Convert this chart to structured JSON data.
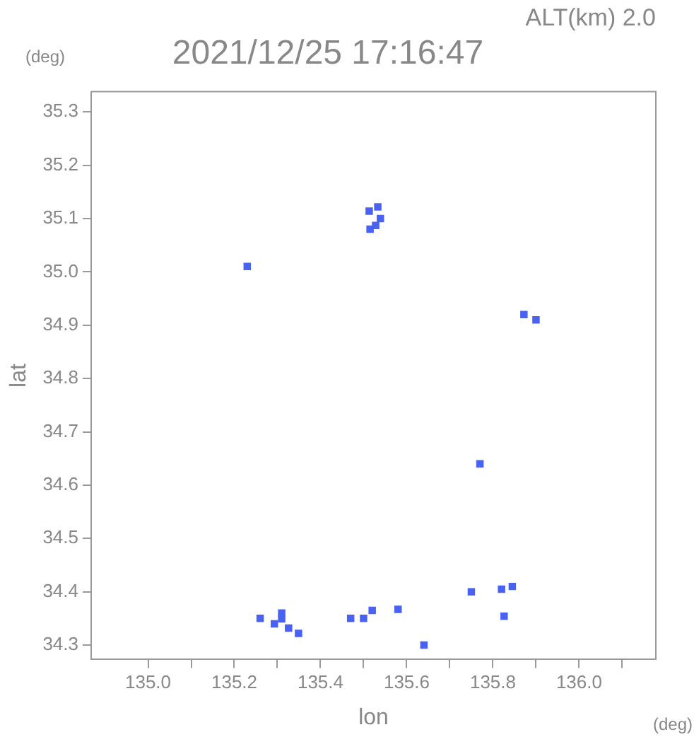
{
  "chart_data": {
    "type": "scatter",
    "title": "2021/12/25 17:16:47",
    "xlabel": "lon",
    "ylabel": "lat",
    "annotations": [
      "ALT(km) 2.0",
      "(deg)",
      "(deg)"
    ],
    "x": [
      135.513,
      135.539,
      135.528,
      135.533,
      135.515,
      135.23,
      135.872,
      135.9,
      135.77,
      135.26,
      135.293,
      135.326,
      135.349,
      135.31,
      135.31,
      135.47,
      135.5,
      135.52,
      135.58,
      135.64,
      135.75,
      135.82,
      135.845,
      135.826
    ],
    "series": [
      {
        "color": "#4a62f2",
        "values": [
          35.114,
          35.1,
          35.087,
          35.122,
          35.08,
          35.01,
          34.92,
          34.91,
          34.64,
          34.35,
          34.34,
          34.332,
          34.322,
          34.349,
          34.36,
          34.35,
          34.35,
          34.365,
          34.367,
          34.3,
          34.4,
          34.405,
          34.41,
          34.354
        ]
      }
    ],
    "marker": "square",
    "grid": false,
    "legend": false,
    "xlim": [
      134.868,
      136.178
    ],
    "ylim": [
      34.273,
      35.338
    ],
    "xticks": [
      {
        "value": 135.0,
        "label": "135.0"
      },
      {
        "value": 135.1,
        "label": null
      },
      {
        "value": 135.2,
        "label": "135.2"
      },
      {
        "value": 135.3,
        "label": null
      },
      {
        "value": 135.4,
        "label": "135.4"
      },
      {
        "value": 135.5,
        "label": null
      },
      {
        "value": 135.6,
        "label": "135.6"
      },
      {
        "value": 135.7,
        "label": null
      },
      {
        "value": 135.8,
        "label": "135.8"
      },
      {
        "value": 135.9,
        "label": null
      },
      {
        "value": 136.0,
        "label": "136.0"
      },
      {
        "value": 136.1,
        "label": null
      }
    ],
    "yticks": [
      {
        "value": 34.3,
        "label": "34.3"
      },
      {
        "value": 34.4,
        "label": "34.4"
      },
      {
        "value": 34.5,
        "label": "34.5"
      },
      {
        "value": 34.6,
        "label": "34.6"
      },
      {
        "value": 34.7,
        "label": "34.7"
      },
      {
        "value": 34.8,
        "label": "34.8"
      },
      {
        "value": 34.9,
        "label": "34.9"
      },
      {
        "value": 35.0,
        "label": "35.0"
      },
      {
        "value": 35.1,
        "label": "35.1"
      },
      {
        "value": 35.2,
        "label": "35.2"
      },
      {
        "value": 35.3,
        "label": "35.3"
      }
    ]
  }
}
